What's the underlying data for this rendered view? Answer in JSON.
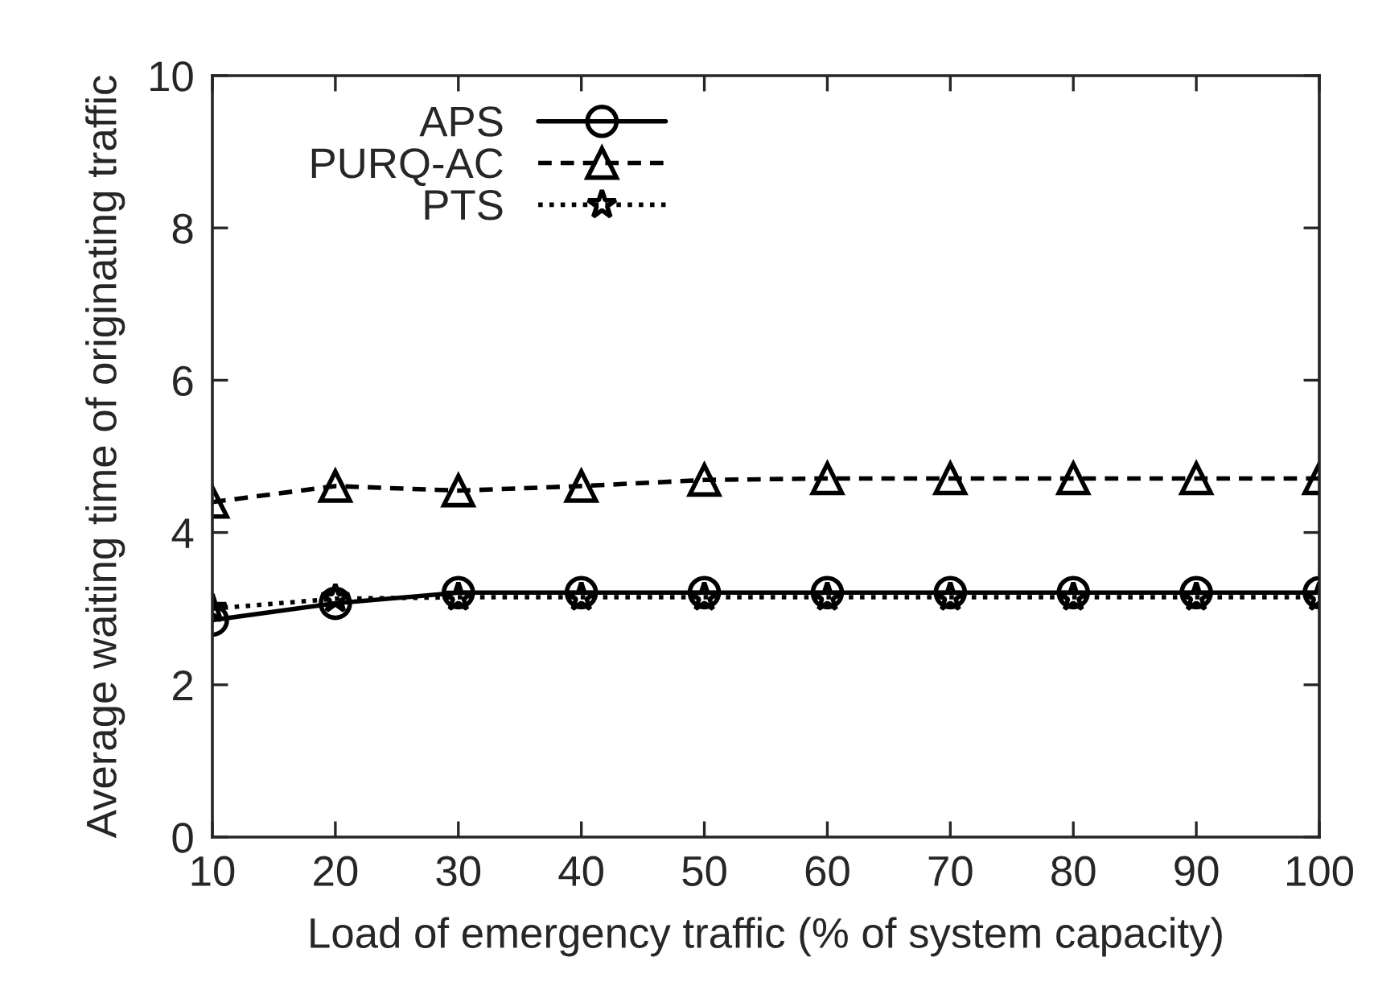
{
  "chart_data": {
    "type": "line",
    "xlabel": "Load of emergency traffic (% of system capacity)",
    "ylabel": "Average waiting time of originating traffic",
    "x": [
      10,
      20,
      30,
      40,
      50,
      60,
      70,
      80,
      90,
      100
    ],
    "series": [
      {
        "name": "APS",
        "color": "#000000",
        "marker": "circle",
        "line_style": "solid",
        "values": [
          2.85,
          3.07,
          3.21,
          3.21,
          3.21,
          3.21,
          3.21,
          3.21,
          3.21,
          3.21
        ]
      },
      {
        "name": "PURQ-AC",
        "color": "#000000",
        "marker": "triangle",
        "line_style": "dashed",
        "values": [
          4.4,
          4.61,
          4.55,
          4.61,
          4.69,
          4.71,
          4.71,
          4.71,
          4.71,
          4.71
        ]
      },
      {
        "name": "PTS",
        "color": "#000000",
        "marker": "star",
        "line_style": "dotted",
        "values": [
          3.0,
          3.13,
          3.15,
          3.15,
          3.15,
          3.15,
          3.15,
          3.15,
          3.15,
          3.15
        ]
      }
    ],
    "xlim": [
      10,
      100
    ],
    "xticks": [
      10,
      20,
      30,
      40,
      50,
      60,
      70,
      80,
      90,
      100
    ],
    "ylim": [
      0,
      10
    ],
    "yticks": [
      0,
      2,
      4,
      6,
      8,
      10
    ],
    "grid": false,
    "legend": "top left"
  }
}
